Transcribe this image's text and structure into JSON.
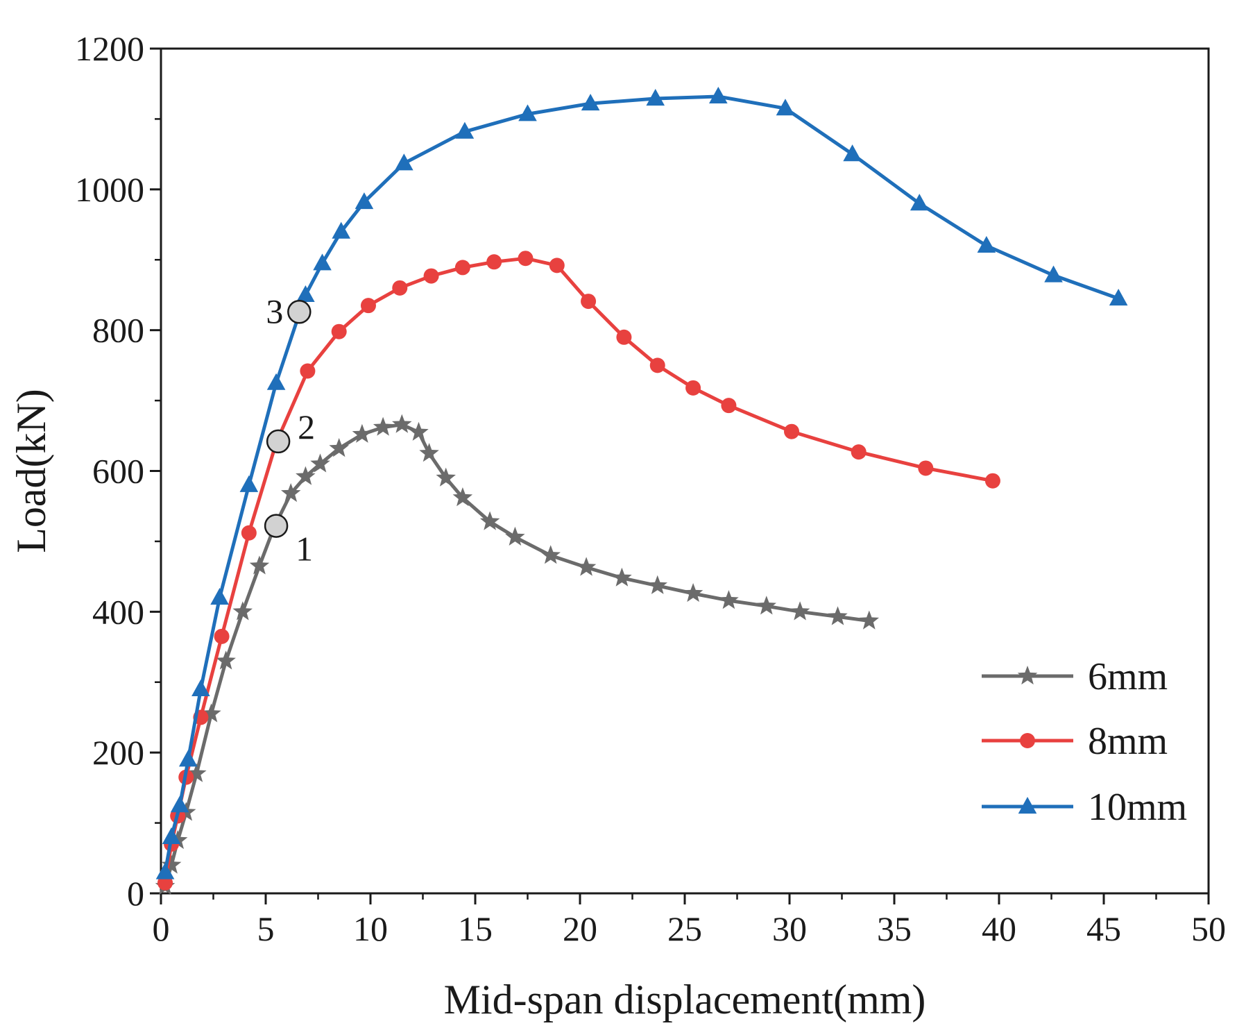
{
  "chart_data": {
    "type": "line",
    "xlabel": "Mid-span displacement(mm)",
    "ylabel": "Load(kN)",
    "xlim": [
      0,
      50
    ],
    "ylim": [
      0,
      1200
    ],
    "xticks": [
      "0",
      "5",
      "10",
      "15",
      "20",
      "25",
      "30",
      "35",
      "40",
      "45",
      "50"
    ],
    "yticks": [
      "0",
      "200",
      "400",
      "600",
      "800",
      "1000",
      "1200"
    ],
    "grid": false,
    "legend_position": "bottom-right",
    "series": [
      {
        "name": "6mm",
        "color": "#6b6b6b",
        "marker": "star",
        "x": [
          0.2,
          0.5,
          0.8,
          1.2,
          1.7,
          2.4,
          3.1,
          3.9,
          4.7,
          5.4,
          6.2,
          6.9,
          7.6,
          8.5,
          9.6,
          10.6,
          11.5,
          12.3,
          12.8,
          13.6,
          14.4,
          15.7,
          16.9,
          18.6,
          20.3,
          22.0,
          23.7,
          25.4,
          27.1,
          28.9,
          30.5,
          32.3,
          33.8
        ],
        "y": [
          10,
          40,
          75,
          115,
          170,
          255,
          330,
          400,
          465,
          520,
          568,
          592,
          610,
          632,
          652,
          662,
          666,
          655,
          625,
          590,
          562,
          528,
          506,
          480,
          463,
          448,
          437,
          426,
          416,
          408,
          400,
          393,
          387
        ]
      },
      {
        "name": "8mm",
        "color": "#e8413f",
        "marker": "circle",
        "x": [
          0.2,
          0.5,
          0.8,
          1.2,
          1.9,
          2.9,
          4.2,
          5.5,
          7.0,
          8.5,
          9.9,
          11.4,
          12.9,
          14.4,
          15.9,
          17.4,
          18.9,
          20.4,
          22.1,
          23.7,
          25.4,
          27.1,
          30.1,
          33.3,
          36.5,
          39.7
        ],
        "y": [
          15,
          70,
          110,
          165,
          250,
          365,
          512,
          640,
          742,
          798,
          835,
          860,
          877,
          889,
          897,
          902,
          892,
          841,
          790,
          750,
          718,
          693,
          656,
          627,
          604,
          586
        ]
      },
      {
        "name": "10mm",
        "color": "#1f6fba",
        "marker": "triangle",
        "x": [
          0.2,
          0.5,
          0.9,
          1.3,
          1.9,
          2.8,
          4.2,
          5.5,
          6.9,
          7.7,
          8.6,
          9.7,
          11.6,
          14.5,
          17.5,
          20.5,
          23.6,
          26.6,
          29.8,
          33.0,
          36.2,
          39.4,
          42.6,
          45.7
        ],
        "y": [
          30,
          80,
          125,
          190,
          290,
          420,
          580,
          725,
          850,
          895,
          940,
          982,
          1037,
          1082,
          1107,
          1122,
          1129,
          1132,
          1115,
          1050,
          980,
          920,
          878,
          845
        ]
      }
    ],
    "annotations": [
      {
        "label": "1",
        "x": 5.5,
        "y": 522
      },
      {
        "label": "2",
        "x": 5.6,
        "y": 642
      },
      {
        "label": "3",
        "x": 6.6,
        "y": 826
      }
    ]
  }
}
